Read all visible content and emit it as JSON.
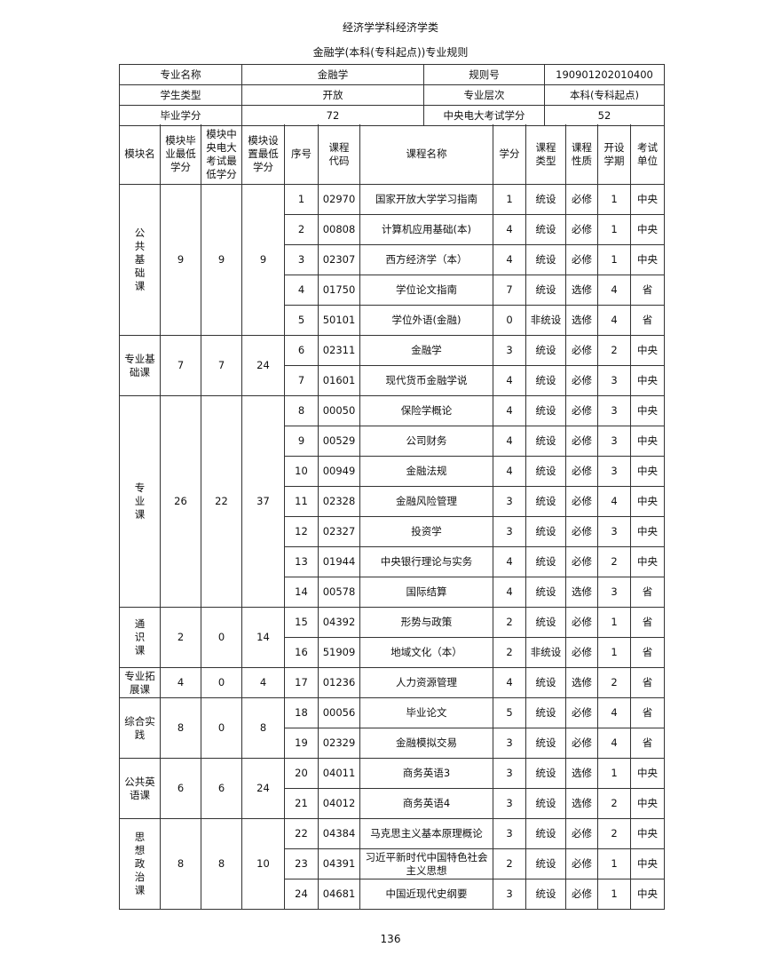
{
  "title": "经济学学科经济学类",
  "subtitle": "金融学(本科(专科起点))专业规则",
  "info": {
    "major_label": "专业名称",
    "major": "金融学",
    "rule_no_label": "规则号",
    "rule_no": "190901202010400",
    "student_type_label": "学生类型",
    "student_type": "开放",
    "level_label": "专业层次",
    "level": "本科(专科起点)",
    "grad_credits_label": "毕业学分",
    "grad_credits": "72",
    "central_credits_label": "中央电大考试学分",
    "central_credits": "52"
  },
  "headers": [
    "模块名",
    "模块毕业最低学分",
    "模块中央电大考试最低学分",
    "模块设置最低学分",
    "序号",
    "课程代码",
    "课程名称",
    "学分",
    "课程类型",
    "课程性质",
    "开设学期",
    "考试单位"
  ],
  "modules": [
    {
      "name": "公共基础课",
      "grad_min": "9",
      "central_min": "9",
      "set_min": "9",
      "vertical": true,
      "courses": [
        [
          "1",
          "02970",
          "国家开放大学学习指南",
          "1",
          "统设",
          "必修",
          "1",
          "中央"
        ],
        [
          "2",
          "00808",
          "计算机应用基础(本)",
          "4",
          "统设",
          "必修",
          "1",
          "中央"
        ],
        [
          "3",
          "02307",
          "西方经济学（本）",
          "4",
          "统设",
          "必修",
          "1",
          "中央"
        ],
        [
          "4",
          "01750",
          "学位论文指南",
          "7",
          "统设",
          "选修",
          "4",
          "省"
        ],
        [
          "5",
          "50101",
          "学位外语(金融)",
          "0",
          "非统设",
          "选修",
          "4",
          "省"
        ]
      ]
    },
    {
      "name": "专业基础课",
      "grad_min": "7",
      "central_min": "7",
      "set_min": "24",
      "courses": [
        [
          "6",
          "02311",
          "金融学",
          "3",
          "统设",
          "必修",
          "2",
          "中央"
        ],
        [
          "7",
          "01601",
          "现代货币金融学说",
          "4",
          "统设",
          "必修",
          "3",
          "中央"
        ]
      ]
    },
    {
      "name": "专业课",
      "grad_min": "26",
      "central_min": "22",
      "set_min": "37",
      "vertical": true,
      "courses": [
        [
          "8",
          "00050",
          "保险学概论",
          "4",
          "统设",
          "必修",
          "3",
          "中央"
        ],
        [
          "9",
          "00529",
          "公司财务",
          "4",
          "统设",
          "必修",
          "3",
          "中央"
        ],
        [
          "10",
          "00949",
          "金融法规",
          "4",
          "统设",
          "必修",
          "3",
          "中央"
        ],
        [
          "11",
          "02328",
          "金融风险管理",
          "3",
          "统设",
          "必修",
          "4",
          "中央"
        ],
        [
          "12",
          "02327",
          "投资学",
          "3",
          "统设",
          "必修",
          "3",
          "中央"
        ],
        [
          "13",
          "01944",
          "中央银行理论与实务",
          "4",
          "统设",
          "必修",
          "2",
          "中央"
        ],
        [
          "14",
          "00578",
          "国际结算",
          "4",
          "统设",
          "选修",
          "3",
          "省"
        ]
      ]
    },
    {
      "name": "通识课",
      "grad_min": "2",
      "central_min": "0",
      "set_min": "14",
      "vertical": true,
      "courses": [
        [
          "15",
          "04392",
          "形势与政策",
          "2",
          "统设",
          "必修",
          "1",
          "省"
        ],
        [
          "16",
          "51909",
          "地域文化（本）",
          "2",
          "非统设",
          "必修",
          "1",
          "省"
        ]
      ]
    },
    {
      "name": "专业拓展课",
      "grad_min": "4",
      "central_min": "0",
      "set_min": "4",
      "courses": [
        [
          "17",
          "01236",
          "人力资源管理",
          "4",
          "统设",
          "选修",
          "2",
          "省"
        ]
      ]
    },
    {
      "name": "综合实践",
      "grad_min": "8",
      "central_min": "0",
      "set_min": "8",
      "courses": [
        [
          "18",
          "00056",
          "毕业论文",
          "5",
          "统设",
          "必修",
          "4",
          "省"
        ],
        [
          "19",
          "02329",
          "金融模拟交易",
          "3",
          "统设",
          "必修",
          "4",
          "省"
        ]
      ]
    },
    {
      "name": "公共英语课",
      "grad_min": "6",
      "central_min": "6",
      "set_min": "24",
      "courses": [
        [
          "20",
          "04011",
          "商务英语3",
          "3",
          "统设",
          "选修",
          "1",
          "中央"
        ],
        [
          "21",
          "04012",
          "商务英语4",
          "3",
          "统设",
          "选修",
          "2",
          "中央"
        ]
      ]
    },
    {
      "name": "思想政治课",
      "grad_min": "8",
      "central_min": "8",
      "set_min": "10",
      "vertical": true,
      "courses": [
        [
          "22",
          "04384",
          "马克思主义基本原理概论",
          "3",
          "统设",
          "必修",
          "2",
          "中央"
        ],
        [
          "23",
          "04391",
          "习近平新时代中国特色社会主义思想",
          "2",
          "统设",
          "必修",
          "1",
          "中央"
        ],
        [
          "24",
          "04681",
          "中国近现代史纲要",
          "3",
          "统设",
          "必修",
          "1",
          "中央"
        ]
      ]
    }
  ],
  "page_number": "136"
}
